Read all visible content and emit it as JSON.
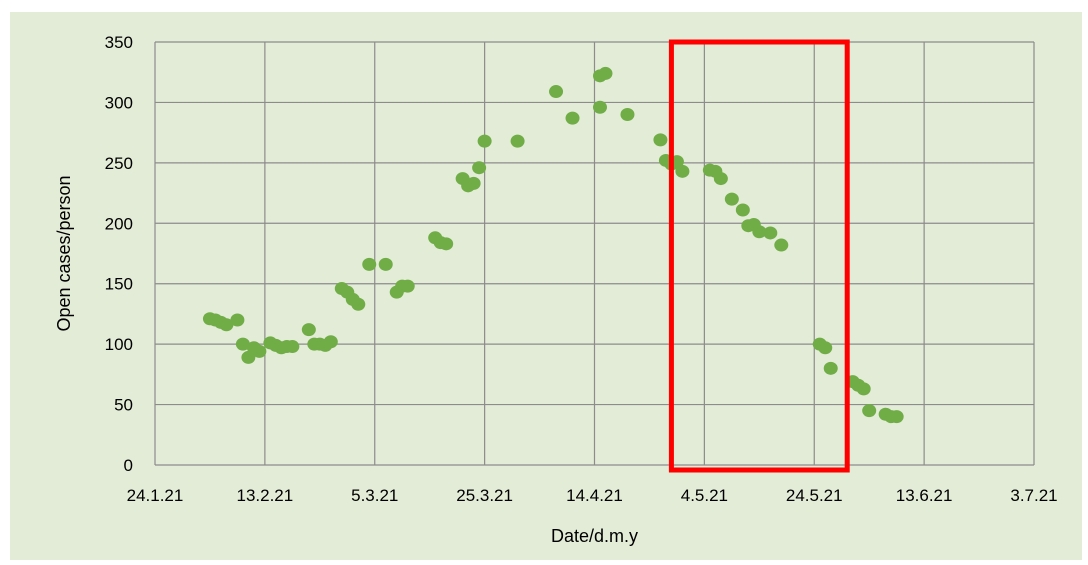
{
  "chart_data": {
    "type": "scatter",
    "xlabel": "Date/d.m.y",
    "ylabel": "Open cases/person",
    "ylim": [
      0,
      350
    ],
    "yticks": [
      0,
      50,
      100,
      150,
      200,
      250,
      300,
      350
    ],
    "xticks": [
      "24.1.21",
      "13.2.21",
      "5.3.21",
      "25.3.21",
      "14.4.21",
      "4.5.21",
      "24.5.21",
      "13.6.21",
      "3.7.21"
    ],
    "xlim": [
      "2021-01-24",
      "2021-07-03"
    ],
    "grid": true,
    "point_color": "#70ad47",
    "highlight_color": "#ff0000",
    "highlight_range": [
      "2021-04-28",
      "2021-05-30"
    ],
    "series": [
      {
        "points": [
          [
            "2021-02-03",
            121
          ],
          [
            "2021-02-04",
            120
          ],
          [
            "2021-02-05",
            118
          ],
          [
            "2021-02-06",
            116
          ],
          [
            "2021-02-08",
            120
          ],
          [
            "2021-02-09",
            100
          ],
          [
            "2021-02-10",
            89
          ],
          [
            "2021-02-11",
            97
          ],
          [
            "2021-02-12",
            94
          ],
          [
            "2021-02-14",
            101
          ],
          [
            "2021-02-15",
            99
          ],
          [
            "2021-02-16",
            97
          ],
          [
            "2021-02-17",
            98
          ],
          [
            "2021-02-18",
            98
          ],
          [
            "2021-02-21",
            112
          ],
          [
            "2021-02-22",
            100
          ],
          [
            "2021-02-23",
            100
          ],
          [
            "2021-02-24",
            99
          ],
          [
            "2021-02-25",
            102
          ],
          [
            "2021-02-27",
            146
          ],
          [
            "2021-02-28",
            143
          ],
          [
            "2021-03-01",
            137
          ],
          [
            "2021-03-02",
            133
          ],
          [
            "2021-03-04",
            166
          ],
          [
            "2021-03-07",
            166
          ],
          [
            "2021-03-09",
            143
          ],
          [
            "2021-03-10",
            148
          ],
          [
            "2021-03-11",
            148
          ],
          [
            "2021-03-16",
            188
          ],
          [
            "2021-03-17",
            184
          ],
          [
            "2021-03-18",
            183
          ],
          [
            "2021-03-21",
            237
          ],
          [
            "2021-03-22",
            231
          ],
          [
            "2021-03-23",
            233
          ],
          [
            "2021-03-24",
            246
          ],
          [
            "2021-03-25",
            268
          ],
          [
            "2021-03-31",
            268
          ],
          [
            "2021-04-07",
            309
          ],
          [
            "2021-04-10",
            287
          ],
          [
            "2021-04-15",
            296
          ],
          [
            "2021-04-15",
            322
          ],
          [
            "2021-04-16",
            324
          ],
          [
            "2021-04-20",
            290
          ],
          [
            "2021-04-26",
            269
          ],
          [
            "2021-04-27",
            252
          ],
          [
            "2021-04-28",
            249
          ],
          [
            "2021-04-29",
            251
          ],
          [
            "2021-04-30",
            243
          ],
          [
            "2021-05-05",
            244
          ],
          [
            "2021-05-06",
            243
          ],
          [
            "2021-05-07",
            237
          ],
          [
            "2021-05-09",
            220
          ],
          [
            "2021-05-11",
            211
          ],
          [
            "2021-05-12",
            198
          ],
          [
            "2021-05-13",
            199
          ],
          [
            "2021-05-14",
            193
          ],
          [
            "2021-05-16",
            192
          ],
          [
            "2021-05-18",
            182
          ],
          [
            "2021-05-25",
            100
          ],
          [
            "2021-05-26",
            97
          ],
          [
            "2021-05-27",
            80
          ],
          [
            "2021-05-31",
            69
          ],
          [
            "2021-06-01",
            66
          ],
          [
            "2021-06-02",
            63
          ],
          [
            "2021-06-03",
            45
          ],
          [
            "2021-06-06",
            42
          ],
          [
            "2021-06-07",
            40
          ],
          [
            "2021-06-08",
            40
          ]
        ]
      }
    ]
  }
}
